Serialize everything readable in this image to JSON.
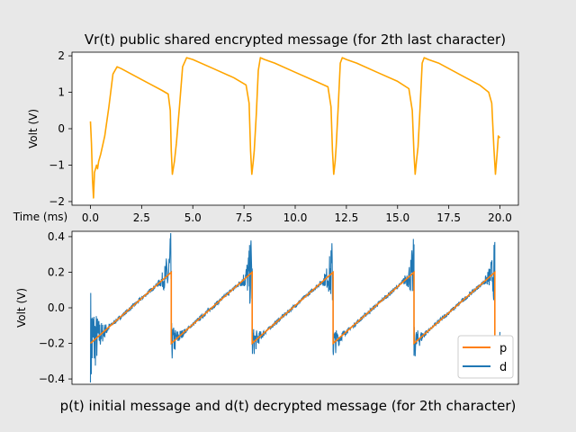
{
  "chart_data": [
    {
      "type": "line",
      "title": "Vr(t) public shared encrypted message (for 2th last character)",
      "xlabel": "Time (ms)",
      "ylabel": "Volt (V)",
      "xlim": [
        -0.9,
        20.9
      ],
      "ylim": [
        -2.1,
        2.1
      ],
      "xticks": [
        "0.0",
        "2.5",
        "5.0",
        "7.5",
        "10.0",
        "12.5",
        "15.0",
        "17.5",
        "20.0"
      ],
      "yticks": [
        "−2",
        "−1",
        "0",
        "1",
        "2"
      ],
      "grid": false,
      "series": [
        {
          "color": "#ffa500",
          "x": [
            0,
            0.05,
            0.1,
            0.15,
            0.2,
            0.3,
            0.35,
            0.4,
            0.5,
            0.7,
            0.9,
            1.1,
            1.3,
            1.5,
            2.0,
            2.5,
            3.0,
            3.5,
            3.8,
            3.9,
            3.95,
            4.0,
            4.1,
            4.2,
            4.35,
            4.5,
            4.7,
            5.0,
            6.0,
            7.0,
            7.6,
            7.75,
            7.82,
            7.88,
            7.95,
            8.0,
            8.1,
            8.2,
            8.3,
            8.5,
            9.0,
            10.0,
            11.0,
            11.6,
            11.75,
            11.82,
            11.88,
            11.95,
            12.0,
            12.1,
            12.2,
            12.3,
            12.5,
            13.0,
            14.0,
            15.0,
            15.55,
            15.72,
            15.8,
            15.86,
            15.92,
            16.0,
            16.1,
            16.2,
            16.3,
            16.5,
            17.0,
            18.0,
            19.0,
            19.45,
            19.6,
            19.7,
            19.78,
            19.86,
            19.92,
            20.0
          ],
          "y": [
            0.2,
            -0.4,
            -1.4,
            -1.9,
            -1.2,
            -1.0,
            -1.1,
            -0.9,
            -0.7,
            -0.2,
            0.6,
            1.5,
            1.7,
            1.65,
            1.5,
            1.35,
            1.2,
            1.05,
            0.95,
            0.5,
            -0.6,
            -1.25,
            -0.9,
            -0.4,
            0.6,
            1.7,
            1.95,
            1.9,
            1.65,
            1.4,
            1.2,
            0.7,
            -0.6,
            -1.25,
            -0.9,
            -0.6,
            0.4,
            1.6,
            1.95,
            1.9,
            1.8,
            1.55,
            1.3,
            1.15,
            0.6,
            -0.6,
            -1.25,
            -0.9,
            -0.5,
            0.6,
            1.8,
            1.95,
            1.9,
            1.8,
            1.55,
            1.3,
            1.1,
            0.5,
            -0.7,
            -1.25,
            -0.9,
            -0.5,
            0.6,
            1.8,
            1.95,
            1.9,
            1.8,
            1.5,
            1.2,
            1.0,
            0.7,
            -0.5,
            -1.25,
            -0.7,
            -0.2,
            -0.25
          ]
        }
      ]
    },
    {
      "type": "line",
      "title": "p(t) initial message and d(t) decrypted message (for 2th character)",
      "xlabel": "",
      "ylabel": "Volt (V)",
      "xlim": [
        -0.9,
        20.9
      ],
      "ylim": [
        -0.43,
        0.43
      ],
      "yticks": [
        "0.4",
        "0.2",
        "0.0",
        "−0.2",
        "−0.4"
      ],
      "grid": false,
      "legend_position": "lower-right",
      "series": [
        {
          "name": "p",
          "color": "#ff7f0e",
          "x": [
            0,
            3.95,
            3.95,
            7.9,
            7.9,
            11.85,
            11.85,
            15.8,
            15.8,
            19.75,
            19.75,
            20.0
          ],
          "y": [
            -0.2,
            0.2,
            -0.2,
            0.2,
            -0.2,
            0.2,
            -0.2,
            0.2,
            -0.2,
            0.2,
            -0.2,
            -0.2
          ]
        },
        {
          "name": "d",
          "color": "#1f77b4",
          "segments": [
            {
              "start": 0.0,
              "end": 3.95,
              "noise_start": 0.35,
              "noise_end": 0.33
            },
            {
              "start": 3.95,
              "end": 7.9,
              "noise_start": 0.12,
              "noise_end": 0.3
            },
            {
              "start": 7.9,
              "end": 11.85,
              "noise_start": 0.1,
              "noise_end": 0.25
            },
            {
              "start": 11.85,
              "end": 15.8,
              "noise_start": 0.1,
              "noise_end": 0.22
            },
            {
              "start": 15.8,
              "end": 19.75,
              "noise_start": 0.1,
              "noise_end": 0.2
            },
            {
              "start": 19.75,
              "end": 20.0,
              "noise_start": 0.1,
              "noise_end": 0.1
            }
          ]
        }
      ]
    }
  ]
}
